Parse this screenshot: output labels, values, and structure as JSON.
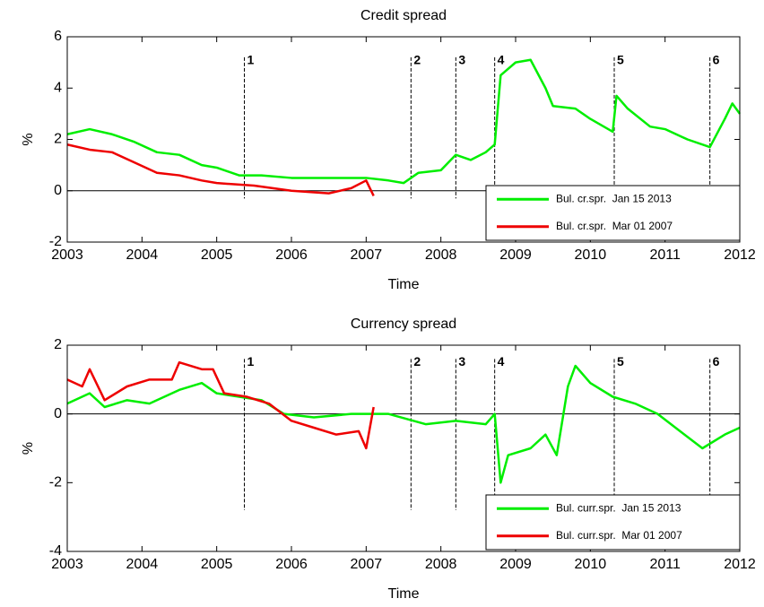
{
  "chart_data": [
    {
      "type": "line",
      "title": "Credit spread",
      "xlabel": "Time",
      "ylabel": "%",
      "xlim": [
        2003,
        2012
      ],
      "ylim": [
        -2,
        6
      ],
      "xticks": [
        2003,
        2004,
        2005,
        2006,
        2007,
        2008,
        2009,
        2010,
        2011,
        2012
      ],
      "yticks": [
        -2,
        0,
        2,
        4,
        6
      ],
      "hline": 0,
      "legend": "lower right",
      "events": [
        {
          "x": 2005.37,
          "label": "1"
        },
        {
          "x": 2007.6,
          "label": "2"
        },
        {
          "x": 2008.2,
          "label": "3"
        },
        {
          "x": 2008.72,
          "label": "4"
        },
        {
          "x": 2010.32,
          "label": "5"
        },
        {
          "x": 2011.6,
          "label": "6"
        }
      ],
      "event_range": [
        -0.3,
        5.2
      ],
      "series": [
        {
          "name": "Bul. cr.spr.  Jan 15 2013",
          "color": "#00ee00",
          "x": [
            2003,
            2003.3,
            2003.6,
            2003.9,
            2004.2,
            2004.5,
            2004.8,
            2005.0,
            2005.3,
            2005.6,
            2006.0,
            2006.5,
            2007.0,
            2007.3,
            2007.5,
            2007.7,
            2008.0,
            2008.2,
            2008.4,
            2008.6,
            2008.72,
            2008.8,
            2009.0,
            2009.2,
            2009.4,
            2009.5,
            2009.8,
            2010.0,
            2010.3,
            2010.35,
            2010.5,
            2010.8,
            2011.0,
            2011.3,
            2011.6,
            2011.8,
            2011.9,
            2012
          ],
          "values": [
            2.2,
            2.4,
            2.2,
            1.9,
            1.5,
            1.4,
            1.0,
            0.9,
            0.6,
            0.6,
            0.5,
            0.5,
            0.5,
            0.4,
            0.3,
            0.7,
            0.8,
            1.4,
            1.2,
            1.5,
            1.8,
            4.5,
            5.0,
            5.1,
            4.0,
            3.3,
            3.2,
            2.8,
            2.3,
            3.7,
            3.2,
            2.5,
            2.4,
            2.0,
            1.7,
            2.8,
            3.4,
            3.0
          ]
        },
        {
          "name": "Bul. cr.spr.  Mar 01 2007",
          "color": "#ee0000",
          "x": [
            2003,
            2003.3,
            2003.6,
            2003.9,
            2004.2,
            2004.5,
            2004.8,
            2005.0,
            2005.5,
            2006.0,
            2006.5,
            2006.8,
            2007.0,
            2007.1
          ],
          "values": [
            1.8,
            1.6,
            1.5,
            1.1,
            0.7,
            0.6,
            0.4,
            0.3,
            0.2,
            0.0,
            -0.1,
            0.1,
            0.4,
            -0.2
          ]
        }
      ]
    },
    {
      "type": "line",
      "title": "Currency spread",
      "xlabel": "Time",
      "ylabel": "%",
      "xlim": [
        2003,
        2012
      ],
      "ylim": [
        -4,
        2
      ],
      "xticks": [
        2003,
        2004,
        2005,
        2006,
        2007,
        2008,
        2009,
        2010,
        2011,
        2012
      ],
      "yticks": [
        -4,
        -2,
        0,
        2
      ],
      "hline": 0,
      "legend": "lower right",
      "events": [
        {
          "x": 2005.37,
          "label": "1"
        },
        {
          "x": 2007.6,
          "label": "2"
        },
        {
          "x": 2008.2,
          "label": "3"
        },
        {
          "x": 2008.72,
          "label": "4"
        },
        {
          "x": 2010.32,
          "label": "5"
        },
        {
          "x": 2011.6,
          "label": "6"
        }
      ],
      "event_range": [
        -2.8,
        1.6
      ],
      "series": [
        {
          "name": "Bul. curr.spr.  Jan 15 2013",
          "color": "#00ee00",
          "x": [
            2003,
            2003.3,
            2003.5,
            2003.8,
            2004.1,
            2004.3,
            2004.5,
            2004.8,
            2005.0,
            2005.3,
            2005.6,
            2005.9,
            2006.3,
            2006.8,
            2007.3,
            2007.8,
            2008.2,
            2008.6,
            2008.72,
            2008.8,
            2008.9,
            2009.2,
            2009.4,
            2009.55,
            2009.7,
            2009.8,
            2010.0,
            2010.3,
            2010.6,
            2010.9,
            2011.2,
            2011.5,
            2011.8,
            2012
          ],
          "values": [
            0.3,
            0.6,
            0.2,
            0.4,
            0.3,
            0.5,
            0.7,
            0.9,
            0.6,
            0.5,
            0.4,
            0.0,
            -0.1,
            0.0,
            0.0,
            -0.3,
            -0.2,
            -0.3,
            0.0,
            -2.0,
            -1.2,
            -1.0,
            -0.6,
            -1.2,
            0.8,
            1.4,
            0.9,
            0.5,
            0.3,
            0.0,
            -0.5,
            -1.0,
            -0.6,
            -0.4
          ]
        },
        {
          "name": "Bul. curr.spr.  Mar 01 2007",
          "color": "#ee0000",
          "x": [
            2003,
            2003.2,
            2003.3,
            2003.5,
            2003.8,
            2004.1,
            2004.4,
            2004.5,
            2004.8,
            2004.95,
            2005.1,
            2005.4,
            2005.7,
            2006.0,
            2006.3,
            2006.6,
            2006.9,
            2007.0,
            2007.1
          ],
          "values": [
            1.0,
            0.8,
            1.3,
            0.4,
            0.8,
            1.0,
            1.0,
            1.5,
            1.3,
            1.3,
            0.6,
            0.5,
            0.3,
            -0.2,
            -0.4,
            -0.6,
            -0.5,
            -1.0,
            0.2
          ]
        }
      ]
    }
  ]
}
